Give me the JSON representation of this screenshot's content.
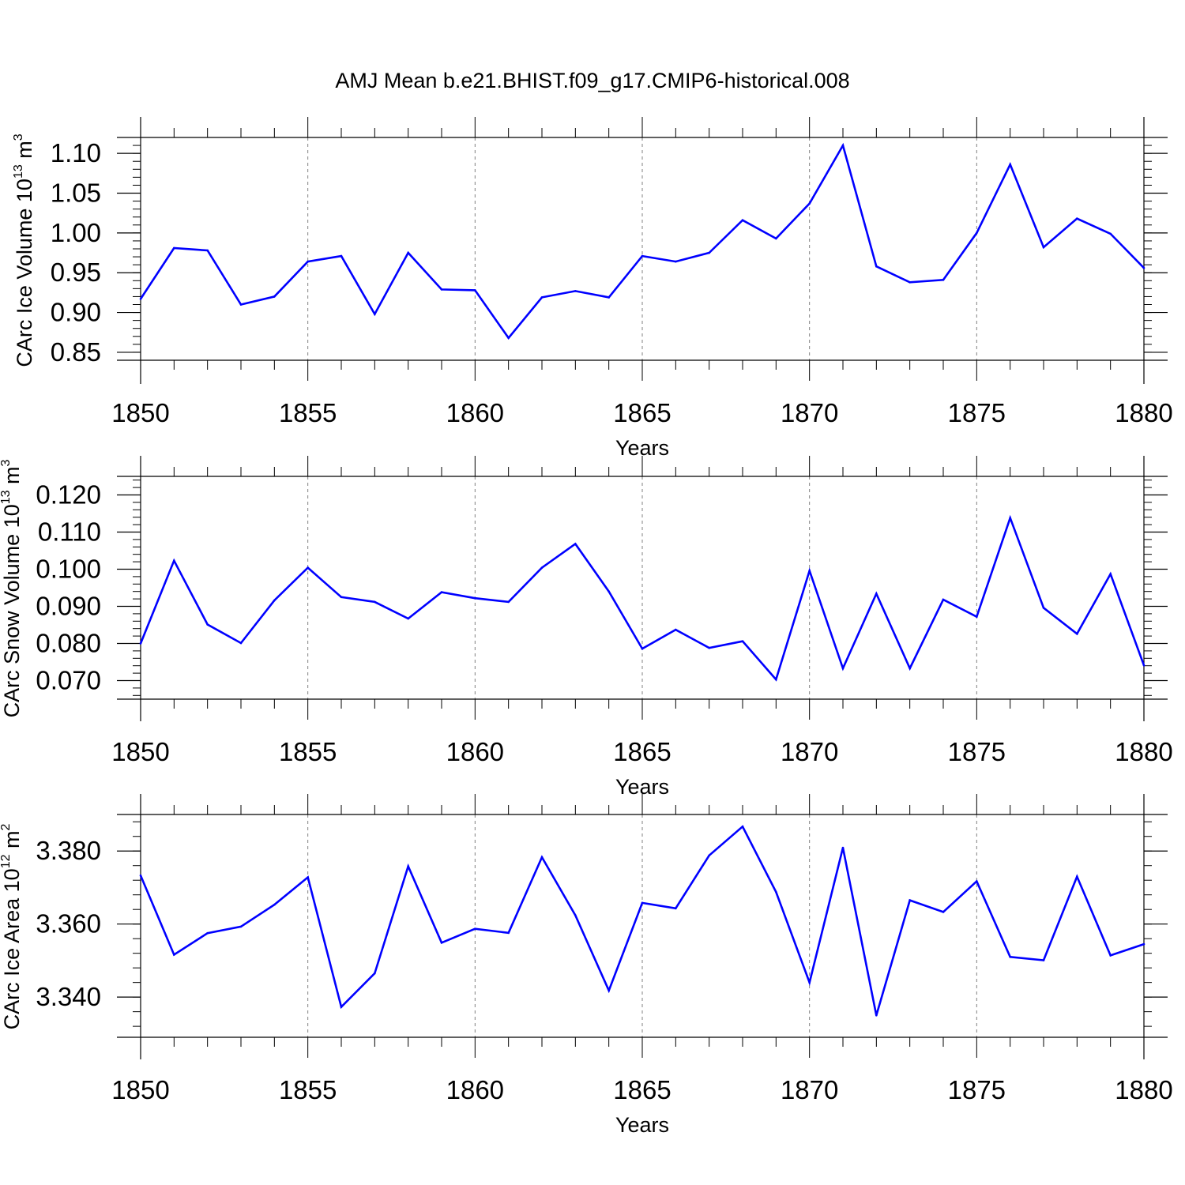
{
  "title": "AMJ Mean b.e21.BHIST.f09_g17.CMIP6-historical.008",
  "colors": {
    "line": "#0000ff",
    "axis": "#000000",
    "grid": "#808080"
  },
  "chart_data": [
    {
      "type": "line",
      "xlabel": "Years",
      "ylabel": {
        "main": "CArc Ice Volume 10",
        "exponent": "13",
        "unit": " m",
        "unit_exponent": "3"
      },
      "xlim": [
        1850,
        1880
      ],
      "ylim": [
        0.84,
        1.12
      ],
      "xticks": [
        1850,
        1855,
        1860,
        1865,
        1870,
        1875,
        1880
      ],
      "yticks": [
        0.85,
        0.9,
        0.95,
        1.0,
        1.05,
        1.1
      ],
      "ytick_labels": [
        "0.85",
        "0.90",
        "0.95",
        "1.00",
        "1.05",
        "1.10"
      ],
      "y_minor_step": 0.01,
      "x": [
        1850,
        1851,
        1852,
        1853,
        1854,
        1855,
        1856,
        1857,
        1858,
        1859,
        1860,
        1861,
        1862,
        1863,
        1864,
        1865,
        1866,
        1867,
        1868,
        1869,
        1870,
        1871,
        1872,
        1873,
        1874,
        1875,
        1876,
        1877,
        1878,
        1879,
        1880
      ],
      "values": [
        0.917,
        0.981,
        0.978,
        0.91,
        0.92,
        0.964,
        0.971,
        0.898,
        0.975,
        0.929,
        0.928,
        0.868,
        0.919,
        0.927,
        0.919,
        0.971,
        0.964,
        0.975,
        1.016,
        0.993,
        1.037,
        1.11,
        0.958,
        0.938,
        0.941,
        1.0,
        1.086,
        0.982,
        1.018,
        0.999,
        0.956
      ]
    },
    {
      "type": "line",
      "xlabel": "Years",
      "ylabel": {
        "main": "CArc Snow Volume 10",
        "exponent": "13",
        "unit": " m",
        "unit_exponent": "3"
      },
      "xlim": [
        1850,
        1880
      ],
      "ylim": [
        0.065,
        0.125
      ],
      "xticks": [
        1850,
        1855,
        1860,
        1865,
        1870,
        1875,
        1880
      ],
      "yticks": [
        0.07,
        0.08,
        0.09,
        0.1,
        0.11,
        0.12
      ],
      "ytick_labels": [
        "0.070",
        "0.080",
        "0.090",
        "0.100",
        "0.110",
        "0.120"
      ],
      "y_minor_step": 0.002,
      "x": [
        1850,
        1851,
        1852,
        1853,
        1854,
        1855,
        1856,
        1857,
        1858,
        1859,
        1860,
        1861,
        1862,
        1863,
        1864,
        1865,
        1866,
        1867,
        1868,
        1869,
        1870,
        1871,
        1872,
        1873,
        1874,
        1875,
        1876,
        1877,
        1878,
        1879,
        1880
      ],
      "values": [
        0.08,
        0.1023,
        0.0851,
        0.0801,
        0.0916,
        0.1004,
        0.0925,
        0.0912,
        0.0867,
        0.0938,
        0.0922,
        0.0912,
        0.1004,
        0.1068,
        0.094,
        0.0786,
        0.0837,
        0.0788,
        0.0806,
        0.0703,
        0.0996,
        0.0733,
        0.0934,
        0.0733,
        0.0918,
        0.0872,
        0.1138,
        0.0896,
        0.0826,
        0.0987,
        0.0741
      ]
    },
    {
      "type": "line",
      "xlabel": "Years",
      "ylabel": {
        "main": "CArc Ice Area 10",
        "exponent": "12",
        "unit": " m",
        "unit_exponent": "2"
      },
      "xlim": [
        1850,
        1880
      ],
      "ylim": [
        3.329,
        3.39
      ],
      "xticks": [
        1850,
        1855,
        1860,
        1865,
        1870,
        1875,
        1880
      ],
      "yticks": [
        3.34,
        3.36,
        3.38
      ],
      "ytick_labels": [
        "3.340",
        "3.360",
        "3.380"
      ],
      "y_minor_step": 0.004,
      "x": [
        1850,
        1851,
        1852,
        1853,
        1854,
        1855,
        1856,
        1857,
        1858,
        1859,
        1860,
        1861,
        1862,
        1863,
        1864,
        1865,
        1866,
        1867,
        1868,
        1869,
        1870,
        1871,
        1872,
        1873,
        1874,
        1875,
        1876,
        1877,
        1878,
        1879,
        1880
      ],
      "values": [
        3.3733,
        3.3516,
        3.3575,
        3.3593,
        3.3653,
        3.3728,
        3.3373,
        3.3465,
        3.3758,
        3.3549,
        3.3587,
        3.3576,
        3.3783,
        3.3624,
        3.3418,
        3.3658,
        3.3643,
        3.3788,
        3.3867,
        3.3688,
        3.344,
        3.3809,
        3.335,
        3.3665,
        3.3633,
        3.3717,
        3.351,
        3.3501,
        3.373,
        3.3514,
        3.3545
      ]
    }
  ]
}
